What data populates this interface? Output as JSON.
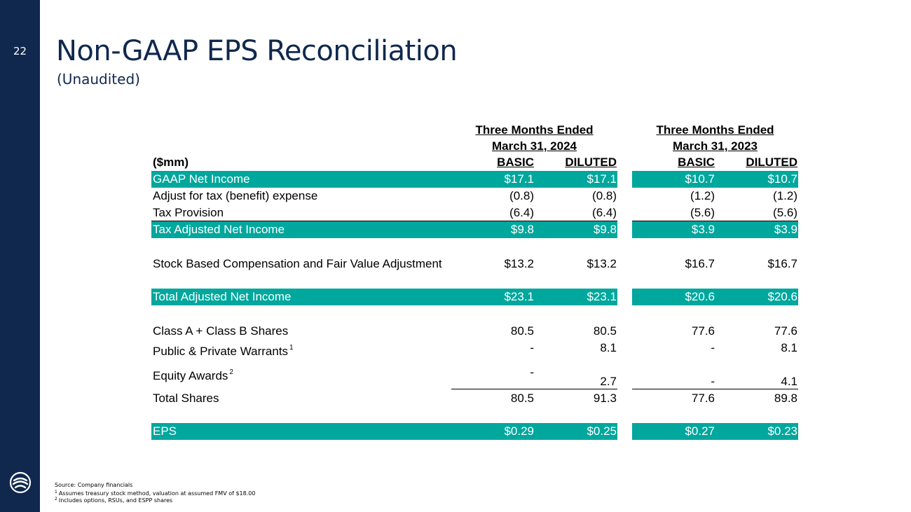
{
  "slide": {
    "page_number": "22",
    "title": "Non-GAAP EPS Reconciliation",
    "subtitle": "(Unaudited)"
  },
  "header": {
    "period1_line1": "Three Months Ended",
    "period1_line2": "March 31, 2024",
    "period2_line1": "Three Months Ended",
    "period2_line2": "March 31, 2023",
    "units": "($mm)",
    "basic": "BASIC",
    "diluted": "DILUTED"
  },
  "rows": {
    "gaap_net_income": {
      "label": "GAAP Net Income",
      "b1": "$17.1",
      "d1": "$17.1",
      "b2": "$10.7",
      "d2": "$10.7"
    },
    "tax_adjust": {
      "label": "Adjust for tax (benefit) expense",
      "b1": "(0.8)",
      "d1": "(0.8)",
      "b2": "(1.2)",
      "d2": "(1.2)"
    },
    "tax_provision": {
      "label": "Tax Provision",
      "b1": "(6.4)",
      "d1": "(6.4)",
      "b2": "(5.6)",
      "d2": "(5.6)"
    },
    "tax_adjusted_net_income": {
      "label": "Tax Adjusted Net Income",
      "b1": "$9.8",
      "d1": "$9.8",
      "b2": "$3.9",
      "d2": "$3.9"
    },
    "sbc": {
      "label": "Stock Based Compensation and Fair Value Adjustment",
      "b1": "$13.2",
      "d1": "$13.2",
      "b2": "$16.7",
      "d2": "$16.7"
    },
    "total_adjusted_net_income": {
      "label": "Total Adjusted Net Income",
      "b1": "$23.1",
      "d1": "$23.1",
      "b2": "$20.6",
      "d2": "$20.6"
    },
    "class_shares": {
      "label": "Class A + Class B Shares",
      "b1": "80.5",
      "d1": "80.5",
      "b2": "77.6",
      "d2": "77.6"
    },
    "warrants": {
      "label": "Public & Private Warrants",
      "sup": "1",
      "b1": "-",
      "d1": "8.1",
      "b2": "-",
      "d2": "8.1"
    },
    "equity_awards": {
      "label": "Equity Awards",
      "sup": "2",
      "b1": "-",
      "d1": "2.7",
      "b2": "-",
      "d2": "4.1"
    },
    "total_shares": {
      "label": "Total Shares",
      "b1": "80.5",
      "d1": "91.3",
      "b2": "77.6",
      "d2": "89.8"
    },
    "eps": {
      "label": "EPS",
      "b1": "$0.29",
      "d1": "$0.25",
      "b2": "$0.27",
      "d2": "$0.23"
    }
  },
  "footnotes": {
    "source": "Source: Company financials",
    "note1_mark": "1",
    "note1": "Assumes treasury stock method, valuation at assumed FMV of $18.00",
    "note2_mark": "2",
    "note2": "Includes options, RSUs, and ESPP shares"
  },
  "colors": {
    "navy": "#10284e",
    "teal": "#00a79d"
  },
  "icons": {
    "logo": "company-logo-icon"
  }
}
